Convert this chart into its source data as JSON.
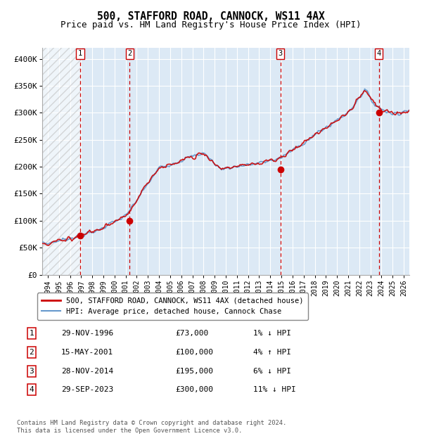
{
  "title": "500, STAFFORD ROAD, CANNOCK, WS11 4AX",
  "subtitle": "Price paid vs. HM Land Registry's House Price Index (HPI)",
  "title_fontsize": 10.5,
  "subtitle_fontsize": 9,
  "xlim": [
    1993.5,
    2026.5
  ],
  "ylim": [
    0,
    420000
  ],
  "yticks": [
    0,
    50000,
    100000,
    150000,
    200000,
    250000,
    300000,
    350000,
    400000
  ],
  "ytick_labels": [
    "£0",
    "£50K",
    "£100K",
    "£150K",
    "£200K",
    "£250K",
    "£300K",
    "£350K",
    "£400K"
  ],
  "xticks": [
    1994,
    1995,
    1996,
    1997,
    1998,
    1999,
    2000,
    2001,
    2002,
    2003,
    2004,
    2005,
    2006,
    2007,
    2008,
    2009,
    2010,
    2011,
    2012,
    2013,
    2014,
    2015,
    2016,
    2017,
    2018,
    2019,
    2020,
    2021,
    2022,
    2023,
    2024,
    2025,
    2026
  ],
  "background_color": "#ffffff",
  "plot_bg_color": "#dce9f5",
  "hatch_region_end": 1996.89,
  "sale_events": [
    {
      "year": 1996.91,
      "price": 73000,
      "label": "1"
    },
    {
      "year": 2001.37,
      "price": 100000,
      "label": "2"
    },
    {
      "year": 2014.91,
      "price": 195000,
      "label": "3"
    },
    {
      "year": 2023.75,
      "price": 300000,
      "label": "4"
    }
  ],
  "legend_entries": [
    {
      "label": "500, STAFFORD ROAD, CANNOCK, WS11 4AX (detached house)",
      "color": "#cc0000",
      "lw": 1.8
    },
    {
      "label": "HPI: Average price, detached house, Cannock Chase",
      "color": "#6699cc",
      "lw": 1.5
    }
  ],
  "table_rows": [
    {
      "num": "1",
      "date": "29-NOV-1996",
      "price": "£73,000",
      "hpi": "1% ↓ HPI"
    },
    {
      "num": "2",
      "date": "15-MAY-2001",
      "price": "£100,000",
      "hpi": "4% ↑ HPI"
    },
    {
      "num": "3",
      "date": "28-NOV-2014",
      "price": "£195,000",
      "hpi": "6% ↓ HPI"
    },
    {
      "num": "4",
      "date": "29-SEP-2023",
      "price": "£300,000",
      "hpi": "11% ↓ HPI"
    }
  ],
  "footnote": "Contains HM Land Registry data © Crown copyright and database right 2024.\nThis data is licensed under the Open Government Licence v3.0.",
  "hpi_color": "#6699cc",
  "price_color": "#cc0000",
  "dot_color": "#cc0000",
  "vline_color": "#cc0000",
  "box_color": "#cc0000"
}
